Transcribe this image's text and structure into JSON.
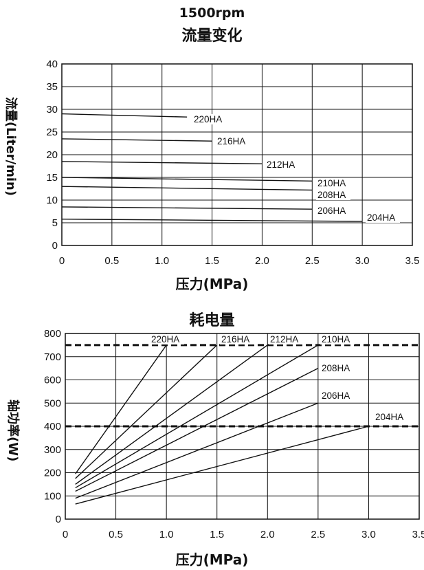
{
  "header": {
    "speed": "1500rpm",
    "chart1_title": "流量变化",
    "chart2_title": "耗电量"
  },
  "axes": {
    "chart1_x": "压力(MPa)",
    "chart1_y": "流量(Liter/min)",
    "chart2_x": "压力(MPa)",
    "chart2_y": "轴功率(W)"
  },
  "chart_data": [
    {
      "type": "line",
      "title": "流量变化",
      "xlabel": "压力(MPa)",
      "ylabel": "流量(Liter/min)",
      "xlim": [
        0,
        3.5
      ],
      "ylim": [
        0,
        40
      ],
      "xticks": [
        "0",
        "0.5",
        "1.0",
        "1.5",
        "2.0",
        "2.5",
        "3.0",
        "3.5"
      ],
      "yticks": [
        "0",
        "5",
        "10",
        "15",
        "20",
        "25",
        "30",
        "35",
        "40"
      ],
      "grid": true,
      "series": [
        {
          "name": "220HA",
          "x": [
            0,
            1.25
          ],
          "y": [
            29,
            28.3
          ]
        },
        {
          "name": "216HA",
          "x": [
            0,
            1.5
          ],
          "y": [
            23.5,
            23
          ]
        },
        {
          "name": "212HA",
          "x": [
            0,
            2.0
          ],
          "y": [
            18.5,
            18
          ]
        },
        {
          "name": "210HA",
          "x": [
            0,
            2.5
          ],
          "y": [
            15,
            14.2
          ]
        },
        {
          "name": "208HA",
          "x": [
            0,
            2.5
          ],
          "y": [
            13,
            12.2
          ]
        },
        {
          "name": "206HA",
          "x": [
            0,
            2.5
          ],
          "y": [
            8.5,
            8.0
          ]
        },
        {
          "name": "204HA",
          "x": [
            0,
            3.0
          ],
          "y": [
            5.8,
            5.3
          ]
        }
      ]
    },
    {
      "type": "line",
      "title": "耗电量",
      "xlabel": "压力(MPa)",
      "ylabel": "轴功率(W)",
      "xlim": [
        0,
        3.5
      ],
      "ylim": [
        0,
        800
      ],
      "xticks": [
        "0",
        "0.5",
        "1.0",
        "1.5",
        "2.0",
        "2.5",
        "3.0",
        "3.5"
      ],
      "yticks": [
        "0",
        "100",
        "200",
        "300",
        "400",
        "500",
        "600",
        "700",
        "800"
      ],
      "grid": true,
      "reference_lines": [
        750,
        400
      ],
      "series": [
        {
          "name": "220HA",
          "x": [
            0.1,
            1.0
          ],
          "y": [
            195,
            750
          ]
        },
        {
          "name": "216HA",
          "x": [
            0.1,
            1.5
          ],
          "y": [
            175,
            750
          ]
        },
        {
          "name": "212HA",
          "x": [
            0.1,
            2.0
          ],
          "y": [
            150,
            750
          ]
        },
        {
          "name": "210HA",
          "x": [
            0.1,
            2.5
          ],
          "y": [
            135,
            750
          ]
        },
        {
          "name": "208HA",
          "x": [
            0.1,
            2.5
          ],
          "y": [
            120,
            650
          ]
        },
        {
          "name": "206HA",
          "x": [
            0.1,
            2.5
          ],
          "y": [
            90,
            500
          ]
        },
        {
          "name": "204HA",
          "x": [
            0.1,
            3.0
          ],
          "y": [
            65,
            400
          ]
        }
      ]
    }
  ]
}
